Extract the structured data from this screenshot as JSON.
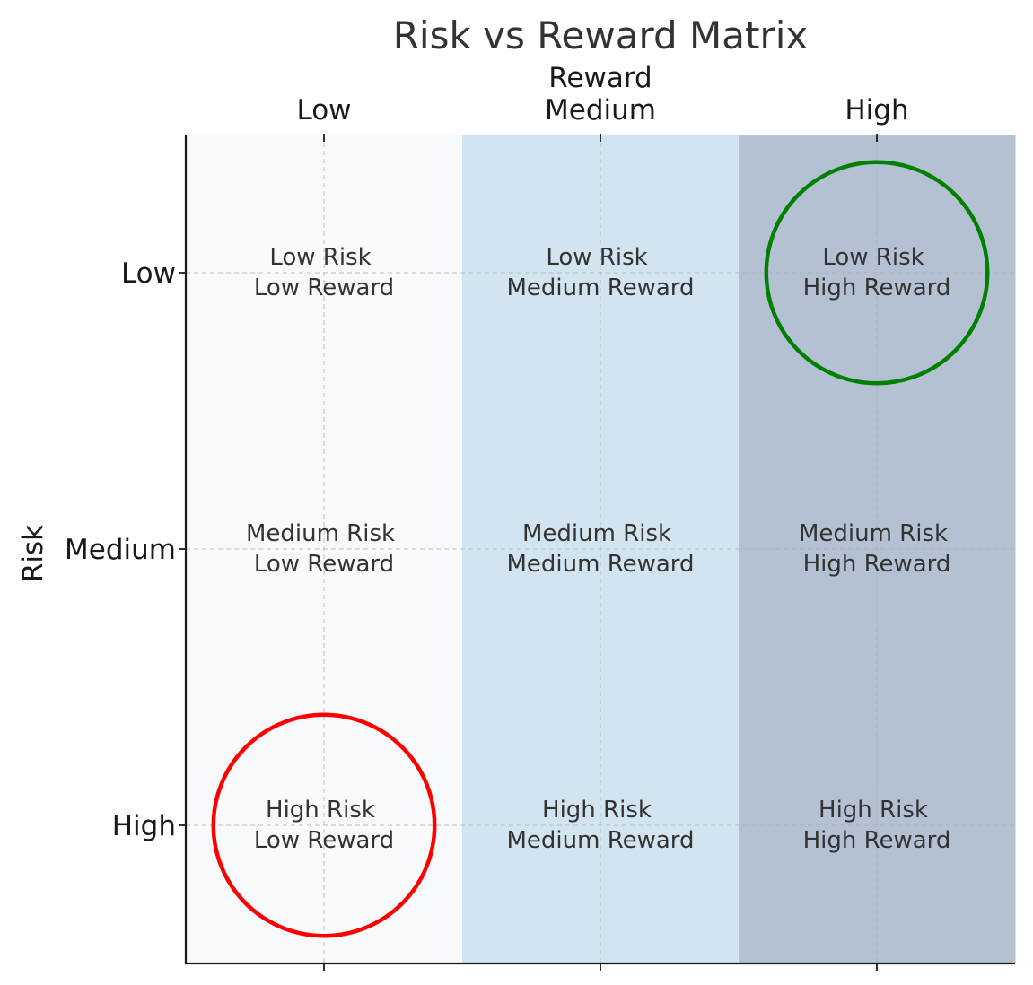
{
  "chart_data": {
    "type": "heatmap",
    "title": "Risk vs Reward Matrix",
    "xlabel": "Reward",
    "ylabel": "Risk",
    "x_categories": [
      "Low",
      "Medium",
      "High"
    ],
    "y_categories": [
      "Low",
      "Medium",
      "High"
    ],
    "x_axis_position": "top",
    "grid": true,
    "grid_style": "dashed",
    "column_colors": [
      "#f8fafd",
      "#d1e4f0",
      "#b4c1d3"
    ],
    "cells": [
      {
        "risk": "Low",
        "reward": "Low",
        "line1": "Low Risk",
        "line2": "Low Reward"
      },
      {
        "risk": "Low",
        "reward": "Medium",
        "line1": "Low Risk",
        "line2": "Medium Reward"
      },
      {
        "risk": "Low",
        "reward": "High",
        "line1": "Low Risk",
        "line2": "High Reward"
      },
      {
        "risk": "Medium",
        "reward": "Low",
        "line1": "Medium Risk",
        "line2": "Low Reward"
      },
      {
        "risk": "Medium",
        "reward": "Medium",
        "line1": "Medium Risk",
        "line2": "Medium Reward"
      },
      {
        "risk": "Medium",
        "reward": "High",
        "line1": "Medium Risk",
        "line2": "High Reward"
      },
      {
        "risk": "High",
        "reward": "Low",
        "line1": "High Risk",
        "line2": "Low Reward"
      },
      {
        "risk": "High",
        "reward": "Medium",
        "line1": "High Risk",
        "line2": "Medium Reward"
      },
      {
        "risk": "High",
        "reward": "High",
        "line1": "High Risk",
        "line2": "High Reward"
      }
    ],
    "highlights": [
      {
        "risk": "Low",
        "reward": "High",
        "color": "#008000",
        "shape": "circle"
      },
      {
        "risk": "High",
        "reward": "Low",
        "color": "#ff0000",
        "shape": "circle"
      }
    ]
  }
}
